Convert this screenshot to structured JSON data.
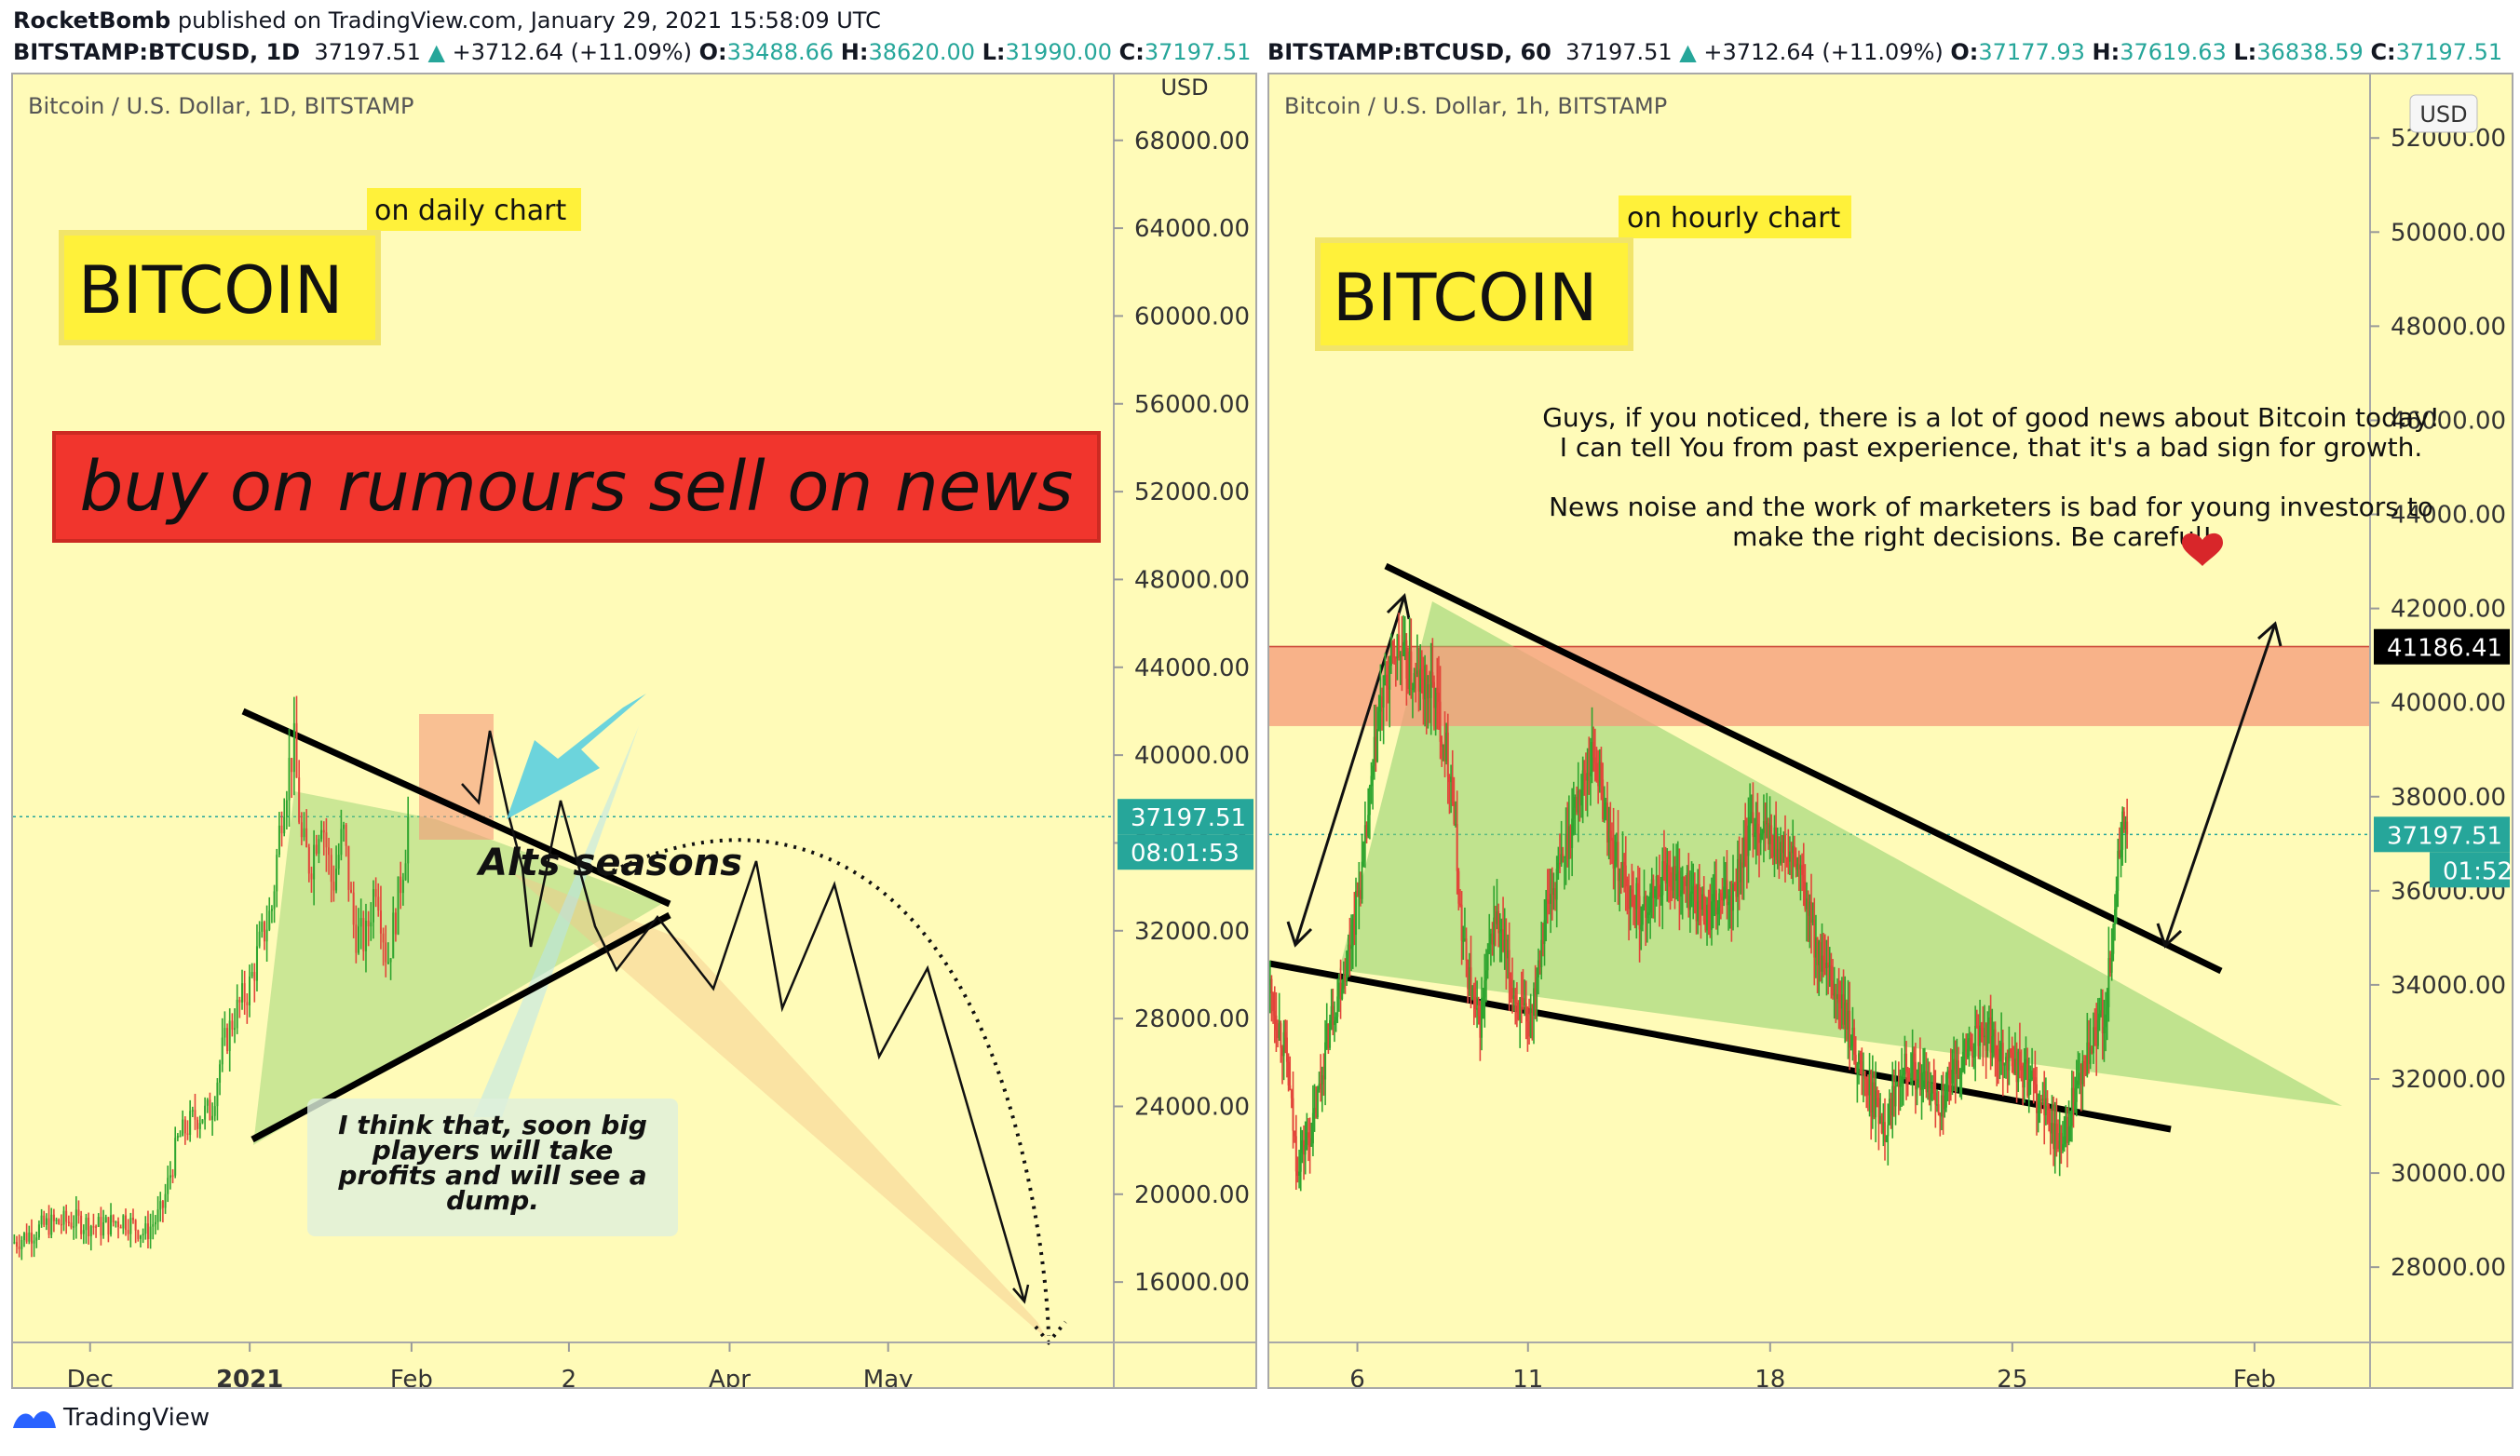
{
  "header": {
    "publisher": "RocketBomb",
    "published": "published on TradingView.com, January 29, 2021 15:58:09 UTC"
  },
  "footer": {
    "brand": "TradingView",
    "logo_icon": "tradingview-logo-icon"
  },
  "colors": {
    "panel_bg": "#fffbb8",
    "up": "#26a69a",
    "up_candle": "#2fa52f",
    "down_candle": "#e2453a",
    "wedge": "#8ccf6b",
    "resistance": "#f59a7a",
    "label_yellow": "#fff13a",
    "banner_red": "#f1352d"
  },
  "chart_data": [
    {
      "type": "candlestick",
      "symbol_line": {
        "symbol": "BITSTAMP:BTCUSD, 1D",
        "last": "37197.51",
        "change": "+3712.64 (+11.09%)",
        "o_label": "O:",
        "o": "33488.66",
        "h_label": "H:",
        "h": "38620.00",
        "l_label": "L:",
        "l": "31990.00",
        "c_label": "C:",
        "c": "37197.51"
      },
      "title": "Bitcoin / U.S. Dollar, 1D, BITSTAMP",
      "currency": "USD",
      "yticks": [
        "68000.00",
        "64000.00",
        "60000.00",
        "56000.00",
        "52000.00",
        "48000.00",
        "44000.00",
        "40000.00",
        "36000.00",
        "32000.00",
        "28000.00",
        "24000.00",
        "20000.00",
        "16000.00"
      ],
      "ylim": [
        13250,
        71000
      ],
      "xticks": [
        {
          "label": "Dec",
          "t": 0.07
        },
        {
          "label": "2021",
          "t": 0.215
        },
        {
          "label": "Feb",
          "t": 0.362
        },
        {
          "label": "2",
          "t": 0.505
        },
        {
          "label": "Apr",
          "t": 0.651
        },
        {
          "label": "May",
          "t": 0.795
        }
      ],
      "price_badge": "37197.51",
      "countdown_badge": "08:01:53",
      "last_price": 37197.51,
      "labels": {
        "bitcoin": "BITCOIN",
        "subtitle": "on daily chart",
        "banner": "buy on rumours sell on news",
        "alts": "Alts seasons",
        "note": [
          "I think that, soon big",
          "players will take",
          "profits and will see a",
          "dump."
        ]
      },
      "anchors": [
        {
          "t": 0.0,
          "v": 17800
        },
        {
          "t": 0.03,
          "v": 18600
        },
        {
          "t": 0.055,
          "v": 18800
        },
        {
          "t": 0.08,
          "v": 18500
        },
        {
          "t": 0.1,
          "v": 18900
        },
        {
          "t": 0.12,
          "v": 18200
        },
        {
          "t": 0.135,
          "v": 19200
        },
        {
          "t": 0.15,
          "v": 22500
        },
        {
          "t": 0.165,
          "v": 23500
        },
        {
          "t": 0.18,
          "v": 23800
        },
        {
          "t": 0.19,
          "v": 26500
        },
        {
          "t": 0.2,
          "v": 28000
        },
        {
          "t": 0.215,
          "v": 29500
        },
        {
          "t": 0.225,
          "v": 31500
        },
        {
          "t": 0.235,
          "v": 33000
        },
        {
          "t": 0.245,
          "v": 38000
        },
        {
          "t": 0.255,
          "v": 40500
        },
        {
          "t": 0.262,
          "v": 36000
        },
        {
          "t": 0.27,
          "v": 35000
        },
        {
          "t": 0.28,
          "v": 37500
        },
        {
          "t": 0.29,
          "v": 34000
        },
        {
          "t": 0.3,
          "v": 36500
        },
        {
          "t": 0.31,
          "v": 32000
        },
        {
          "t": 0.32,
          "v": 31500
        },
        {
          "t": 0.33,
          "v": 34500
        },
        {
          "t": 0.34,
          "v": 30500
        },
        {
          "t": 0.35,
          "v": 33500
        },
        {
          "t": 0.36,
          "v": 37197
        }
      ]
    },
    {
      "type": "candlestick",
      "symbol_line": {
        "symbol": "BITSTAMP:BTCUSD, 60",
        "last": "37197.51",
        "change": "+3712.64 (+11.09%)",
        "o_label": "O:",
        "o": "37177.93",
        "h_label": "H:",
        "h": "37619.63",
        "l_label": "L:",
        "l": "36838.59",
        "c_label": "C:",
        "c": "37197.51"
      },
      "title": "Bitcoin / U.S. Dollar, 1h, BITSTAMP",
      "currency": "USD",
      "yticks": [
        "52000.00",
        "50000.00",
        "48000.00",
        "46000.00",
        "44000.00",
        "42000.00",
        "40000.00",
        "38000.00",
        "36000.00",
        "34000.00",
        "32000.00",
        "30000.00",
        "28000.00"
      ],
      "ylim": [
        26400,
        53350
      ],
      "xticks": [
        {
          "label": "6",
          "t": 0.08
        },
        {
          "label": "11",
          "t": 0.235
        },
        {
          "label": "18",
          "t": 0.455
        },
        {
          "label": "25",
          "t": 0.675
        },
        {
          "label": "Feb",
          "t": 0.895
        }
      ],
      "price_badge": "37197.51",
      "countdown_badge": "01:52",
      "level_badge": "41186.41",
      "last_price": 37197.51,
      "level_price": 41186.41,
      "labels": {
        "bitcoin": "BITCOIN",
        "subtitle": "on hourly chart",
        "message": [
          "Guys, if you noticed, there is a lot of good news about Bitcoin today!",
          "I can tell You from past experience, that it's a bad sign for growth.",
          "",
          "News noise and the work of marketers is bad for young investors to",
          "make the right decisions. Be careful!"
        ],
        "heart_icon": "heart-icon"
      },
      "anchors": [
        {
          "t": 0.0,
          "v": 34000
        },
        {
          "t": 0.015,
          "v": 32500
        },
        {
          "t": 0.025,
          "v": 30200
        },
        {
          "t": 0.04,
          "v": 31000
        },
        {
          "t": 0.055,
          "v": 33200
        },
        {
          "t": 0.07,
          "v": 34500
        },
        {
          "t": 0.085,
          "v": 36500
        },
        {
          "t": 0.1,
          "v": 39800
        },
        {
          "t": 0.115,
          "v": 41200
        },
        {
          "t": 0.13,
          "v": 40500
        },
        {
          "t": 0.15,
          "v": 40200
        },
        {
          "t": 0.165,
          "v": 38500
        },
        {
          "t": 0.175,
          "v": 35000
        },
        {
          "t": 0.19,
          "v": 33000
        },
        {
          "t": 0.205,
          "v": 35500
        },
        {
          "t": 0.22,
          "v": 34000
        },
        {
          "t": 0.235,
          "v": 33000
        },
        {
          "t": 0.25,
          "v": 35500
        },
        {
          "t": 0.265,
          "v": 36500
        },
        {
          "t": 0.28,
          "v": 38000
        },
        {
          "t": 0.295,
          "v": 39000
        },
        {
          "t": 0.31,
          "v": 37000
        },
        {
          "t": 0.325,
          "v": 36000
        },
        {
          "t": 0.34,
          "v": 35500
        },
        {
          "t": 0.36,
          "v": 36500
        },
        {
          "t": 0.38,
          "v": 36000
        },
        {
          "t": 0.4,
          "v": 35500
        },
        {
          "t": 0.42,
          "v": 36000
        },
        {
          "t": 0.44,
          "v": 37500
        },
        {
          "t": 0.46,
          "v": 37000
        },
        {
          "t": 0.48,
          "v": 36500
        },
        {
          "t": 0.5,
          "v": 34500
        },
        {
          "t": 0.52,
          "v": 33500
        },
        {
          "t": 0.54,
          "v": 32000
        },
        {
          "t": 0.56,
          "v": 31000
        },
        {
          "t": 0.575,
          "v": 32500
        },
        {
          "t": 0.59,
          "v": 32000
        },
        {
          "t": 0.61,
          "v": 31500
        },
        {
          "t": 0.63,
          "v": 32500
        },
        {
          "t": 0.65,
          "v": 33000
        },
        {
          "t": 0.67,
          "v": 32500
        },
        {
          "t": 0.69,
          "v": 32000
        },
        {
          "t": 0.71,
          "v": 31000
        },
        {
          "t": 0.72,
          "v": 30500
        },
        {
          "t": 0.73,
          "v": 31500
        },
        {
          "t": 0.745,
          "v": 32500
        },
        {
          "t": 0.76,
          "v": 33500
        },
        {
          "t": 0.775,
          "v": 37500
        },
        {
          "t": 0.78,
          "v": 37197
        }
      ]
    }
  ]
}
